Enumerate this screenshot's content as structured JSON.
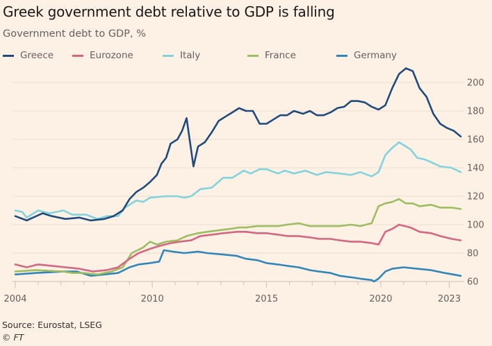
{
  "chart_data": {
    "type": "line",
    "title": "Greek government debt relative to GDP is falling",
    "subtitle": "Government debt to GDP, %",
    "xlabel": "",
    "ylabel": "",
    "xlim": [
      2004,
      2023.5
    ],
    "ylim": [
      60,
      210
    ],
    "x_ticks": [
      2004,
      2010,
      2015,
      2020,
      2023
    ],
    "x_tick_labels": [
      "2004",
      "2010",
      "2015",
      "2020",
      "2023"
    ],
    "y_ticks": [
      60,
      80,
      100,
      120,
      140,
      160,
      180,
      200
    ],
    "y_tick_labels": [
      "60",
      "80",
      "100",
      "120",
      "140",
      "160",
      "180",
      "200"
    ],
    "y_axis_side": "right",
    "grid": "horizontal",
    "legend_placement": "top",
    "series": [
      {
        "name": "Greece",
        "color": "#1f4a7c",
        "points": [
          [
            2004.0,
            106
          ],
          [
            2004.5,
            103
          ],
          [
            2005.2,
            108
          ],
          [
            2005.6,
            106
          ],
          [
            2006.2,
            104
          ],
          [
            2006.8,
            105
          ],
          [
            2007.3,
            103
          ],
          [
            2007.9,
            104
          ],
          [
            2008.3,
            106
          ],
          [
            2008.7,
            110
          ],
          [
            2009.0,
            118
          ],
          [
            2009.3,
            123
          ],
          [
            2009.6,
            126
          ],
          [
            2009.9,
            130
          ],
          [
            2010.2,
            135
          ],
          [
            2010.4,
            143
          ],
          [
            2010.6,
            147
          ],
          [
            2010.8,
            157
          ],
          [
            2011.1,
            160
          ],
          [
            2011.3,
            166
          ],
          [
            2011.5,
            175
          ],
          [
            2011.8,
            141
          ],
          [
            2012.0,
            155
          ],
          [
            2012.3,
            158
          ],
          [
            2012.6,
            165
          ],
          [
            2012.9,
            173
          ],
          [
            2013.2,
            176
          ],
          [
            2013.5,
            179
          ],
          [
            2013.8,
            182
          ],
          [
            2014.1,
            180
          ],
          [
            2014.4,
            180
          ],
          [
            2014.7,
            171
          ],
          [
            2015.0,
            171
          ],
          [
            2015.3,
            174
          ],
          [
            2015.6,
            177
          ],
          [
            2015.9,
            177
          ],
          [
            2016.2,
            180
          ],
          [
            2016.6,
            178
          ],
          [
            2016.9,
            180
          ],
          [
            2017.2,
            177
          ],
          [
            2017.5,
            177
          ],
          [
            2017.8,
            179
          ],
          [
            2018.1,
            182
          ],
          [
            2018.4,
            183
          ],
          [
            2018.7,
            187
          ],
          [
            2019.0,
            187
          ],
          [
            2019.3,
            186
          ],
          [
            2019.6,
            183
          ],
          [
            2019.9,
            181
          ],
          [
            2020.2,
            184
          ],
          [
            2020.5,
            196
          ],
          [
            2020.8,
            206
          ],
          [
            2021.1,
            210
          ],
          [
            2021.4,
            208
          ],
          [
            2021.7,
            196
          ],
          [
            2022.0,
            190
          ],
          [
            2022.3,
            178
          ],
          [
            2022.6,
            171
          ],
          [
            2022.9,
            168
          ],
          [
            2023.2,
            166
          ],
          [
            2023.5,
            162
          ]
        ]
      },
      {
        "name": "Eurozone",
        "color": "#d6667f",
        "points": [
          [
            2004.0,
            72
          ],
          [
            2004.5,
            70
          ],
          [
            2005.0,
            72
          ],
          [
            2005.6,
            71
          ],
          [
            2006.2,
            70
          ],
          [
            2006.8,
            69
          ],
          [
            2007.4,
            67
          ],
          [
            2008.0,
            68
          ],
          [
            2008.5,
            70
          ],
          [
            2009.0,
            76
          ],
          [
            2009.4,
            80
          ],
          [
            2009.9,
            83
          ],
          [
            2010.3,
            85
          ],
          [
            2010.8,
            87
          ],
          [
            2011.2,
            88
          ],
          [
            2011.7,
            89
          ],
          [
            2012.1,
            92
          ],
          [
            2012.6,
            93
          ],
          [
            2013.1,
            94
          ],
          [
            2013.7,
            95
          ],
          [
            2014.1,
            95
          ],
          [
            2014.6,
            94
          ],
          [
            2015.0,
            94
          ],
          [
            2015.5,
            93
          ],
          [
            2015.9,
            92
          ],
          [
            2016.4,
            92
          ],
          [
            2016.9,
            91
          ],
          [
            2017.3,
            90
          ],
          [
            2017.8,
            90
          ],
          [
            2018.2,
            89
          ],
          [
            2018.7,
            88
          ],
          [
            2019.1,
            88
          ],
          [
            2019.6,
            87
          ],
          [
            2019.9,
            86
          ],
          [
            2020.2,
            95
          ],
          [
            2020.5,
            97
          ],
          [
            2020.8,
            100
          ],
          [
            2021.3,
            98
          ],
          [
            2021.7,
            95
          ],
          [
            2022.2,
            94
          ],
          [
            2022.6,
            92
          ],
          [
            2023.1,
            90
          ],
          [
            2023.5,
            89
          ]
        ]
      },
      {
        "name": "Italy",
        "color": "#82d3dc",
        "points": [
          [
            2004.0,
            110
          ],
          [
            2004.3,
            109
          ],
          [
            2004.5,
            105
          ],
          [
            2005.0,
            110
          ],
          [
            2005.5,
            108
          ],
          [
            2006.1,
            110
          ],
          [
            2006.5,
            107
          ],
          [
            2007.1,
            107
          ],
          [
            2007.6,
            104
          ],
          [
            2008.0,
            106
          ],
          [
            2008.5,
            106
          ],
          [
            2008.8,
            112
          ],
          [
            2009.3,
            117
          ],
          [
            2009.6,
            116
          ],
          [
            2009.9,
            119
          ],
          [
            2010.6,
            120
          ],
          [
            2011.1,
            120
          ],
          [
            2011.4,
            119
          ],
          [
            2011.7,
            120
          ],
          [
            2012.1,
            125
          ],
          [
            2012.6,
            126
          ],
          [
            2013.1,
            133
          ],
          [
            2013.5,
            133
          ],
          [
            2014.0,
            138
          ],
          [
            2014.3,
            136
          ],
          [
            2014.7,
            139
          ],
          [
            2015.0,
            139
          ],
          [
            2015.5,
            136
          ],
          [
            2015.8,
            138
          ],
          [
            2016.2,
            136
          ],
          [
            2016.7,
            138
          ],
          [
            2017.2,
            135
          ],
          [
            2017.6,
            137
          ],
          [
            2018.2,
            136
          ],
          [
            2018.7,
            135
          ],
          [
            2019.1,
            137
          ],
          [
            2019.6,
            134
          ],
          [
            2019.9,
            137
          ],
          [
            2020.2,
            149
          ],
          [
            2020.5,
            154
          ],
          [
            2020.8,
            158
          ],
          [
            2021.3,
            153
          ],
          [
            2021.6,
            147
          ],
          [
            2021.9,
            146
          ],
          [
            2022.2,
            144
          ],
          [
            2022.6,
            141
          ],
          [
            2023.1,
            140
          ],
          [
            2023.5,
            137
          ]
        ]
      },
      {
        "name": "France",
        "color": "#9dbd5f",
        "points": [
          [
            2004.0,
            67
          ],
          [
            2004.9,
            68
          ],
          [
            2006.1,
            67
          ],
          [
            2006.5,
            66
          ],
          [
            2007.0,
            66
          ],
          [
            2007.6,
            65
          ],
          [
            2008.2,
            67
          ],
          [
            2008.7,
            70
          ],
          [
            2009.1,
            80
          ],
          [
            2009.6,
            84
          ],
          [
            2009.9,
            88
          ],
          [
            2010.2,
            86
          ],
          [
            2010.6,
            88
          ],
          [
            2011.1,
            89
          ],
          [
            2011.5,
            92
          ],
          [
            2012.0,
            94
          ],
          [
            2012.4,
            95
          ],
          [
            2012.9,
            96
          ],
          [
            2013.4,
            97
          ],
          [
            2013.8,
            98
          ],
          [
            2014.1,
            98
          ],
          [
            2014.6,
            99
          ],
          [
            2015.0,
            99
          ],
          [
            2015.5,
            99
          ],
          [
            2015.9,
            100
          ],
          [
            2016.4,
            101
          ],
          [
            2016.9,
            99
          ],
          [
            2017.3,
            99
          ],
          [
            2017.8,
            99
          ],
          [
            2018.2,
            99
          ],
          [
            2018.7,
            100
          ],
          [
            2019.1,
            99
          ],
          [
            2019.6,
            101
          ],
          [
            2019.9,
            113
          ],
          [
            2020.2,
            115
          ],
          [
            2020.5,
            116
          ],
          [
            2020.8,
            118
          ],
          [
            2021.1,
            115
          ],
          [
            2021.4,
            115
          ],
          [
            2021.7,
            113
          ],
          [
            2022.2,
            114
          ],
          [
            2022.6,
            112
          ],
          [
            2023.1,
            112
          ],
          [
            2023.5,
            111
          ]
        ]
      },
      {
        "name": "Germany",
        "color": "#2f86b8",
        "points": [
          [
            2004.0,
            65
          ],
          [
            2004.9,
            66
          ],
          [
            2006.1,
            67
          ],
          [
            2006.7,
            67
          ],
          [
            2007.3,
            64
          ],
          [
            2007.9,
            65
          ],
          [
            2008.5,
            66
          ],
          [
            2009.0,
            70
          ],
          [
            2009.4,
            72
          ],
          [
            2009.9,
            73
          ],
          [
            2010.3,
            74
          ],
          [
            2010.5,
            82
          ],
          [
            2010.9,
            81
          ],
          [
            2011.4,
            80
          ],
          [
            2012.0,
            81
          ],
          [
            2012.4,
            80
          ],
          [
            2013.1,
            79
          ],
          [
            2013.7,
            78
          ],
          [
            2014.1,
            76
          ],
          [
            2014.6,
            75
          ],
          [
            2015.0,
            73
          ],
          [
            2015.5,
            72
          ],
          [
            2015.9,
            71
          ],
          [
            2016.4,
            70
          ],
          [
            2016.9,
            68
          ],
          [
            2017.3,
            67
          ],
          [
            2017.8,
            66
          ],
          [
            2018.2,
            64
          ],
          [
            2018.7,
            63
          ],
          [
            2019.1,
            62
          ],
          [
            2019.6,
            61
          ],
          [
            2019.7,
            60
          ],
          [
            2019.9,
            62
          ],
          [
            2020.2,
            67
          ],
          [
            2020.5,
            69
          ],
          [
            2021.0,
            70
          ],
          [
            2021.6,
            69
          ],
          [
            2022.2,
            68
          ],
          [
            2022.8,
            66
          ],
          [
            2023.5,
            64
          ]
        ]
      }
    ]
  },
  "footer": {
    "source": "Source: Eurostat, LSEG",
    "copyright": "© FT"
  }
}
